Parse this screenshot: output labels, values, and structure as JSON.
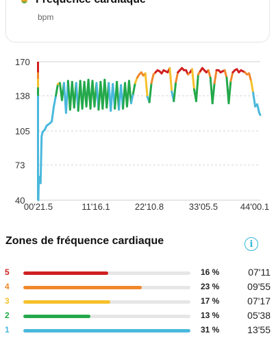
{
  "header": {
    "title": "Fréquence cardiaque",
    "unit": "bpm"
  },
  "chart_data": {
    "type": "line",
    "title": "",
    "xlabel": "",
    "ylabel": "",
    "y_ticks": [
      "170",
      "138",
      "105",
      "73",
      "40"
    ],
    "y_tick_values": [
      170,
      138,
      105,
      73,
      40
    ],
    "x_ticks": [
      "00'21.5",
      "11'16.1",
      "22'10.8",
      "33'05.5",
      "44'00.1"
    ],
    "ylim": [
      40,
      170
    ],
    "xlim_minutes": [
      0.358,
      44.0
    ],
    "grid": "horizontal-dashed",
    "zone_colors": {
      "1": "#4ab8dc",
      "2": "#23a84a",
      "3": "#f5c02a",
      "4": "#f0882a",
      "5": "#d02020"
    },
    "zone_thresholds": [
      138,
      146,
      154,
      160
    ],
    "series": [
      {
        "x": [
          0.36,
          0.45,
          0.6,
          0.8,
          1.0,
          1.2,
          1.4,
          1.6,
          1.8,
          2.0,
          2.3,
          2.6,
          3.0,
          3.4,
          3.8,
          4.2,
          4.6,
          5.0,
          5.4,
          5.8,
          6.2,
          6.6,
          7.0,
          7.4,
          7.8,
          8.2,
          8.6,
          9.0,
          9.4,
          9.8,
          10.2,
          10.6,
          11.0,
          11.4,
          11.8,
          12.2,
          12.6,
          13.0,
          13.4,
          13.8,
          14.2,
          14.6,
          15.0,
          15.4,
          15.8,
          16.2,
          16.6,
          17.0,
          17.4,
          17.8,
          18.2,
          18.6,
          19.0,
          19.4,
          19.8,
          20.2,
          20.6,
          21.0,
          21.4,
          21.8,
          22.2,
          22.6,
          23.0,
          23.4,
          23.8,
          24.2,
          24.6,
          25.0,
          25.4,
          25.8,
          26.2,
          26.6,
          27.0,
          27.4,
          27.8,
          28.2,
          28.6,
          29.0,
          29.4,
          29.8,
          30.2,
          30.6,
          31.0,
          31.4,
          31.8,
          32.2,
          32.6,
          33.0,
          33.4,
          33.8,
          34.2,
          34.6,
          35.0,
          35.4,
          35.8,
          36.2,
          36.6,
          37.0,
          37.4,
          37.8,
          38.2,
          38.6,
          39.0,
          39.4,
          39.8,
          40.2,
          40.6,
          41.0,
          41.4,
          41.8,
          42.2,
          42.6,
          43.0,
          43.4,
          43.8,
          44.0
        ],
        "y": [
          40,
          62,
          58,
          56,
          100,
          104,
          105,
          106,
          108,
          110,
          111,
          112,
          114,
          128,
          138,
          149,
          150,
          134,
          150,
          122,
          152,
          125,
          151,
          127,
          150,
          124,
          152,
          126,
          151,
          128,
          153,
          126,
          152,
          128,
          150,
          125,
          151,
          126,
          153,
          127,
          150,
          124,
          149,
          126,
          151,
          125,
          148,
          126,
          150,
          128,
          152,
          131,
          140,
          150,
          155,
          158,
          160,
          157,
          159,
          137,
          132,
          150,
          158,
          160,
          162,
          161,
          159,
          162,
          161,
          160,
          164,
          142,
          133,
          151,
          160,
          162,
          164,
          162,
          162,
          158,
          160,
          163,
          144,
          133,
          158,
          161,
          164,
          162,
          160,
          162,
          155,
          131,
          150,
          162,
          162,
          160,
          161,
          162,
          155,
          131,
          152,
          160,
          162,
          163,
          160,
          162,
          161,
          160,
          158,
          159,
          152,
          141,
          128,
          130,
          122,
          120
        ]
      }
    ]
  },
  "zones": {
    "title": "Zones de fréquence cardiaque",
    "info_icon": "info-icon",
    "items": [
      {
        "zone": "5",
        "percent": "16 %",
        "fraction": 0.51,
        "time": "07'11",
        "color": "#d02020"
      },
      {
        "zone": "4",
        "percent": "23 %",
        "fraction": 0.71,
        "time": "09'55",
        "color": "#f0882a"
      },
      {
        "zone": "3",
        "percent": "17 %",
        "fraction": 0.52,
        "time": "07'17",
        "color": "#f5c02a"
      },
      {
        "zone": "2",
        "percent": "13 %",
        "fraction": 0.4,
        "time": "05'38",
        "color": "#23a84a"
      },
      {
        "zone": "1",
        "percent": "31 %",
        "fraction": 1.0,
        "time": "13'55",
        "color": "#4ab8dc"
      }
    ]
  }
}
